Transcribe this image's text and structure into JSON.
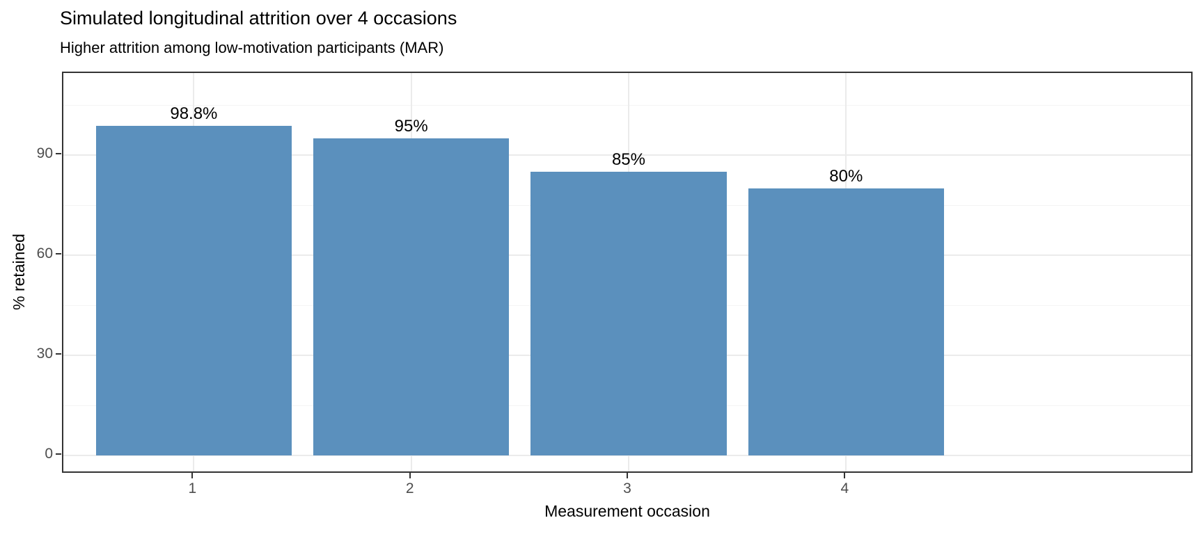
{
  "chart_data": {
    "type": "bar",
    "title": "Simulated longitudinal attrition over 4 occasions",
    "subtitle": "Higher attrition among low-motivation participants (MAR)",
    "xlabel": "Measurement occasion",
    "ylabel": "% retained",
    "categories": [
      "1",
      "2",
      "3",
      "4"
    ],
    "values": [
      98.8,
      95,
      85,
      80
    ],
    "bar_labels": [
      "98.8%",
      "95%",
      "85%",
      "80%"
    ],
    "y_ticks": [
      0,
      30,
      60,
      90
    ],
    "y_minor_ticks": [
      15,
      45,
      75,
      105
    ],
    "ylim": [
      0,
      114.6
    ],
    "grid": "on",
    "legend": "none",
    "colors": {
      "bar_fill": "#5b90bd",
      "panel_border": "#333333",
      "grid_major": "#ebebeb",
      "grid_minor": "#f4f4f4",
      "tick_label": "#4d4d4d",
      "text": "#000000",
      "background": "#ffffff"
    }
  }
}
